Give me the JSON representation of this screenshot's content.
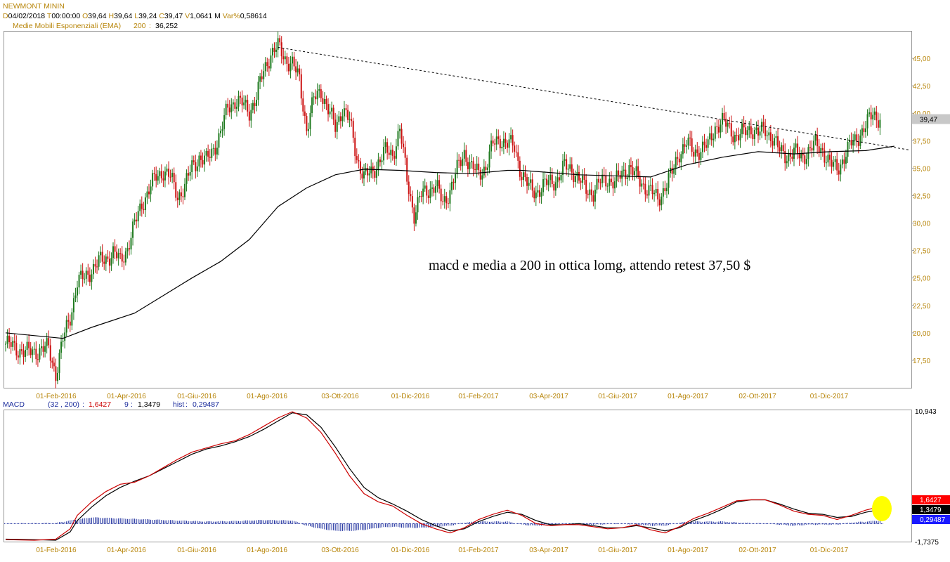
{
  "header": {
    "symbol": "NEWMONT MININ",
    "quote": [
      {
        "key": "D",
        "value": "04/02/2018"
      },
      {
        "key": "T",
        "value": "00:00:00"
      },
      {
        "key": "O",
        "value": "39,64"
      },
      {
        "key": "H",
        "value": "39,64"
      },
      {
        "key": "L",
        "value": "39,24"
      },
      {
        "key": "C",
        "value": "39,47"
      },
      {
        "key": "V",
        "value": "1,0641 M"
      },
      {
        "key": "Var%",
        "value": "0,58614"
      }
    ],
    "indicator": {
      "label": "Medie Mobili Esponenziali (EMA)",
      "period": "200",
      "value": "36,252"
    }
  },
  "colors": {
    "up": "#1e7a1e",
    "down": "#cc1111",
    "axis_text": "#b8860b",
    "ema": "#000000",
    "macd_line": "#cc0000",
    "signal_line": "#000000",
    "hist": "#1a2b9c",
    "last_badge": "#c8c8c8",
    "highlight": "#ffff00"
  },
  "annotation": "macd e media a 200 in ottica lomg, attendo retest 37,50 $",
  "chart_data": [
    {
      "type": "candlestick",
      "title": "NEWMONT MININ",
      "x_labels": [
        "01-Feb-2016",
        "01-Apr-2016",
        "01-Giu-2016",
        "01-Ago-2016",
        "03-Ott-2016",
        "01-Dic-2016",
        "01-Feb-2017",
        "03-Apr-2017",
        "01-Giu-2017",
        "01-Ago-2017",
        "02-Ott-2017",
        "01-Dic-2017"
      ],
      "y_ticks": [
        "17,50",
        "20,00",
        "22,50",
        "25,00",
        "27,50",
        "30,00",
        "32,50",
        "35,00",
        "37,50",
        "40,00",
        "42,50",
        "45,00"
      ],
      "y_tick_values": [
        17.5,
        20,
        22.5,
        25,
        27.5,
        30,
        32.5,
        35,
        37.5,
        40,
        42.5,
        45
      ],
      "ylim": [
        15,
        47.5
      ],
      "last_close_label": "39,47",
      "last_close": 39.47,
      "close_path": [
        [
          0,
          19.0
        ],
        [
          3,
          18.2
        ],
        [
          6,
          18.6
        ],
        [
          7,
          16.3
        ],
        [
          8,
          19.3
        ],
        [
          9,
          21.5
        ],
        [
          10,
          24.6
        ],
        [
          11,
          25.0
        ],
        [
          12,
          25.8
        ],
        [
          13,
          26.4
        ],
        [
          14,
          26.8
        ],
        [
          15,
          27.3
        ],
        [
          16,
          26.5
        ],
        [
          17,
          27.8
        ],
        [
          18,
          29.8
        ],
        [
          19,
          31.8
        ],
        [
          20,
          33.0
        ],
        [
          21,
          34.2
        ],
        [
          22,
          34.8
        ],
        [
          23,
          34.1
        ],
        [
          24,
          32.5
        ],
        [
          25,
          33.3
        ],
        [
          26,
          35.1
        ],
        [
          27,
          36.0
        ],
        [
          28,
          35.6
        ],
        [
          29,
          36.8
        ],
        [
          30,
          38.2
        ],
        [
          31,
          40.5
        ],
        [
          32,
          41.2
        ],
        [
          33,
          40.8
        ],
        [
          34,
          40.2
        ],
        [
          35,
          41.5
        ],
        [
          36,
          43.8
        ],
        [
          37,
          45.5
        ],
        [
          38,
          46.0
        ],
        [
          39,
          45.0
        ],
        [
          40,
          44.5
        ],
        [
          41,
          43.0
        ],
        [
          42,
          38.6
        ],
        [
          43,
          41.2
        ],
        [
          44,
          42.1
        ],
        [
          45,
          40.3
        ],
        [
          46,
          38.7
        ],
        [
          47,
          40.5
        ],
        [
          48,
          39.2
        ],
        [
          49,
          36.0
        ],
        [
          50,
          34.2
        ],
        [
          51,
          34.5
        ],
        [
          52,
          35.6
        ],
        [
          53,
          36.5
        ],
        [
          54,
          36.3
        ],
        [
          55,
          38.5
        ],
        [
          56,
          34.0
        ],
        [
          57,
          30.8
        ],
        [
          58,
          32.5
        ],
        [
          59,
          33.1
        ],
        [
          60,
          33.4
        ],
        [
          61,
          31.8
        ],
        [
          62,
          33.0
        ],
        [
          63,
          34.8
        ],
        [
          64,
          36.5
        ],
        [
          65,
          35.0
        ],
        [
          66,
          34.5
        ],
        [
          67,
          35.2
        ],
        [
          68,
          37.1
        ],
        [
          69,
          37.7
        ],
        [
          70,
          37.2
        ],
        [
          71,
          36.9
        ],
        [
          72,
          34.5
        ],
        [
          73,
          33.2
        ],
        [
          74,
          32.9
        ],
        [
          75,
          33.3
        ],
        [
          76,
          33.8
        ],
        [
          77,
          34.0
        ],
        [
          78,
          35.1
        ],
        [
          79,
          35.0
        ],
        [
          80,
          33.9
        ],
        [
          81,
          33.1
        ],
        [
          82,
          32.8
        ],
        [
          83,
          33.7
        ],
        [
          84,
          34.1
        ],
        [
          85,
          33.6
        ],
        [
          86,
          34.5
        ],
        [
          87,
          35.1
        ],
        [
          88,
          34.2
        ],
        [
          89,
          33.5
        ],
        [
          90,
          32.9
        ],
        [
          91,
          32.1
        ],
        [
          92,
          33.4
        ],
        [
          93,
          34.5
        ],
        [
          94,
          36.5
        ],
        [
          95,
          37.3
        ],
        [
          96,
          36.4
        ],
        [
          97,
          36.8
        ],
        [
          98,
          37.0
        ],
        [
          99,
          38.8
        ],
        [
          100,
          39.2
        ],
        [
          101,
          38.6
        ],
        [
          102,
          37.9
        ],
        [
          103,
          38.2
        ],
        [
          104,
          38.7
        ],
        [
          105,
          38.1
        ],
        [
          106,
          38.5
        ],
        [
          107,
          37.8
        ],
        [
          108,
          36.5
        ],
        [
          109,
          36.2
        ],
        [
          110,
          36.4
        ],
        [
          111,
          36.0
        ],
        [
          112,
          36.6
        ],
        [
          113,
          37.1
        ],
        [
          114,
          36.7
        ],
        [
          115,
          35.3
        ],
        [
          116,
          35.0
        ],
        [
          117,
          36.0
        ],
        [
          118,
          37.2
        ],
        [
          119,
          38.0
        ],
        [
          120,
          38.7
        ],
        [
          121,
          40.1
        ],
        [
          122,
          39.47
        ]
      ],
      "ema_200": [
        [
          0,
          20.0
        ],
        [
          8,
          19.5
        ],
        [
          12,
          20.5
        ],
        [
          18,
          21.8
        ],
        [
          22,
          23.4
        ],
        [
          26,
          25.0
        ],
        [
          30,
          26.5
        ],
        [
          34,
          28.5
        ],
        [
          38,
          31.5
        ],
        [
          42,
          33.2
        ],
        [
          46,
          34.4
        ],
        [
          50,
          34.9
        ],
        [
          55,
          34.8
        ],
        [
          60,
          34.6
        ],
        [
          65,
          34.5
        ],
        [
          70,
          34.8
        ],
        [
          72,
          34.8
        ],
        [
          80,
          34.4
        ],
        [
          90,
          34.2
        ],
        [
          95,
          35.3
        ],
        [
          100,
          36.0
        ],
        [
          105,
          36.5
        ],
        [
          110,
          36.3
        ],
        [
          115,
          36.5
        ],
        [
          120,
          36.6
        ],
        [
          124,
          37.0
        ]
      ],
      "trendline": [
        [
          38,
          46.0
        ],
        [
          121,
          37.2
        ]
      ]
    },
    {
      "type": "line",
      "title": "MACD",
      "params": "(32 , 200)",
      "macd_label": "1,6427",
      "signal_period": "9",
      "signal_label": "1,3479",
      "hist_label": "hist",
      "hist_value_label": "0,29487",
      "ylim": [
        -1.7375,
        10.943
      ],
      "y_ticks": [
        "10,943",
        "-1,7375"
      ],
      "y_tick_values": [
        10.943,
        -1.7375
      ],
      "x_labels": [
        "01-Feb-2016",
        "01-Apr-2016",
        "01-Giu-2016",
        "01-Ago-2016",
        "03-Ott-2016",
        "01-Dic-2016",
        "01-Feb-2017",
        "03-Apr-2017",
        "01-Giu-2017",
        "01-Ago-2017",
        "02-Ott-2017",
        "01-Dic-2017"
      ],
      "macd": [
        [
          0,
          -1.55
        ],
        [
          4,
          -1.6
        ],
        [
          7,
          -1.5
        ],
        [
          9,
          -0.5
        ],
        [
          10,
          0.8
        ],
        [
          12,
          2.1
        ],
        [
          14,
          3.1
        ],
        [
          16,
          3.8
        ],
        [
          18,
          4.0
        ],
        [
          20,
          4.6
        ],
        [
          22,
          5.4
        ],
        [
          24,
          6.2
        ],
        [
          26,
          6.9
        ],
        [
          28,
          7.3
        ],
        [
          30,
          7.7
        ],
        [
          32,
          8.0
        ],
        [
          34,
          8.6
        ],
        [
          36,
          9.4
        ],
        [
          38,
          10.2
        ],
        [
          40,
          10.8
        ],
        [
          42,
          10.2
        ],
        [
          44,
          8.8
        ],
        [
          46,
          6.8
        ],
        [
          48,
          4.6
        ],
        [
          50,
          2.9
        ],
        [
          52,
          2.1
        ],
        [
          54,
          1.7
        ],
        [
          56,
          0.8
        ],
        [
          58,
          0.0
        ],
        [
          60,
          -0.5
        ],
        [
          62,
          -0.9
        ],
        [
          64,
          -0.4
        ],
        [
          66,
          0.4
        ],
        [
          68,
          0.9
        ],
        [
          70,
          1.3
        ],
        [
          72,
          0.8
        ],
        [
          74,
          0.0
        ],
        [
          76,
          -0.2
        ],
        [
          78,
          -0.1
        ],
        [
          80,
          -0.1
        ],
        [
          82,
          -0.3
        ],
        [
          84,
          -0.5
        ],
        [
          86,
          -0.4
        ],
        [
          88,
          -0.1
        ],
        [
          90,
          -0.6
        ],
        [
          92,
          -0.9
        ],
        [
          94,
          -0.3
        ],
        [
          96,
          0.5
        ],
        [
          98,
          1.0
        ],
        [
          100,
          1.6
        ],
        [
          102,
          2.2
        ],
        [
          104,
          2.3
        ],
        [
          106,
          2.3
        ],
        [
          108,
          1.8
        ],
        [
          110,
          1.2
        ],
        [
          112,
          0.9
        ],
        [
          114,
          0.8
        ],
        [
          116,
          0.4
        ],
        [
          118,
          0.8
        ],
        [
          120,
          1.3
        ],
        [
          122,
          1.64
        ]
      ],
      "signal": [
        [
          0,
          -1.5
        ],
        [
          4,
          -1.55
        ],
        [
          7,
          -1.6
        ],
        [
          9,
          -0.8
        ],
        [
          10,
          0.3
        ],
        [
          12,
          1.6
        ],
        [
          14,
          2.7
        ],
        [
          16,
          3.5
        ],
        [
          18,
          4.1
        ],
        [
          20,
          4.6
        ],
        [
          22,
          5.3
        ],
        [
          24,
          6.0
        ],
        [
          26,
          6.7
        ],
        [
          28,
          7.2
        ],
        [
          30,
          7.5
        ],
        [
          32,
          7.9
        ],
        [
          34,
          8.4
        ],
        [
          36,
          9.1
        ],
        [
          38,
          9.9
        ],
        [
          40,
          10.7
        ],
        [
          42,
          10.5
        ],
        [
          44,
          9.3
        ],
        [
          46,
          7.4
        ],
        [
          48,
          5.3
        ],
        [
          50,
          3.5
        ],
        [
          52,
          2.5
        ],
        [
          54,
          1.9
        ],
        [
          56,
          1.2
        ],
        [
          58,
          0.4
        ],
        [
          60,
          -0.2
        ],
        [
          62,
          -0.7
        ],
        [
          64,
          -0.5
        ],
        [
          66,
          0.2
        ],
        [
          68,
          0.7
        ],
        [
          70,
          1.1
        ],
        [
          72,
          0.9
        ],
        [
          74,
          0.3
        ],
        [
          76,
          -0.1
        ],
        [
          78,
          -0.1
        ],
        [
          80,
          0.0
        ],
        [
          82,
          -0.2
        ],
        [
          84,
          -0.4
        ],
        [
          86,
          -0.4
        ],
        [
          88,
          -0.2
        ],
        [
          90,
          -0.4
        ],
        [
          92,
          -0.7
        ],
        [
          94,
          -0.4
        ],
        [
          96,
          0.3
        ],
        [
          98,
          0.8
        ],
        [
          100,
          1.4
        ],
        [
          102,
          2.1
        ],
        [
          104,
          2.3
        ],
        [
          106,
          2.3
        ],
        [
          108,
          1.9
        ],
        [
          110,
          1.4
        ],
        [
          112,
          1.0
        ],
        [
          114,
          0.9
        ],
        [
          116,
          0.6
        ],
        [
          118,
          0.7
        ],
        [
          120,
          1.1
        ],
        [
          122,
          1.35
        ]
      ],
      "histogram": [
        [
          0,
          0.0
        ],
        [
          7,
          0.05
        ],
        [
          9,
          0.3
        ],
        [
          12,
          0.6
        ],
        [
          16,
          0.5
        ],
        [
          20,
          0.4
        ],
        [
          24,
          0.3
        ],
        [
          28,
          0.2
        ],
        [
          32,
          0.25
        ],
        [
          36,
          0.35
        ],
        [
          40,
          0.3
        ],
        [
          42,
          -0.2
        ],
        [
          44,
          -0.5
        ],
        [
          46,
          -0.7
        ],
        [
          48,
          -0.7
        ],
        [
          50,
          -0.6
        ],
        [
          52,
          -0.4
        ],
        [
          54,
          -0.3
        ],
        [
          56,
          -0.4
        ],
        [
          58,
          -0.4
        ],
        [
          60,
          -0.3
        ],
        [
          62,
          -0.2
        ],
        [
          64,
          0.1
        ],
        [
          66,
          0.2
        ],
        [
          68,
          0.2
        ],
        [
          70,
          0.2
        ],
        [
          72,
          -0.1
        ],
        [
          74,
          -0.2
        ],
        [
          76,
          -0.1
        ],
        [
          78,
          0.0
        ],
        [
          82,
          -0.1
        ],
        [
          86,
          0.0
        ],
        [
          90,
          -0.2
        ],
        [
          92,
          -0.2
        ],
        [
          94,
          0.1
        ],
        [
          96,
          0.2
        ],
        [
          98,
          0.2
        ],
        [
          100,
          0.2
        ],
        [
          102,
          0.1
        ],
        [
          106,
          0.0
        ],
        [
          108,
          -0.1
        ],
        [
          110,
          -0.2
        ],
        [
          112,
          -0.1
        ],
        [
          116,
          -0.1
        ],
        [
          118,
          0.1
        ],
        [
          120,
          0.2
        ],
        [
          122,
          0.29
        ]
      ]
    }
  ]
}
